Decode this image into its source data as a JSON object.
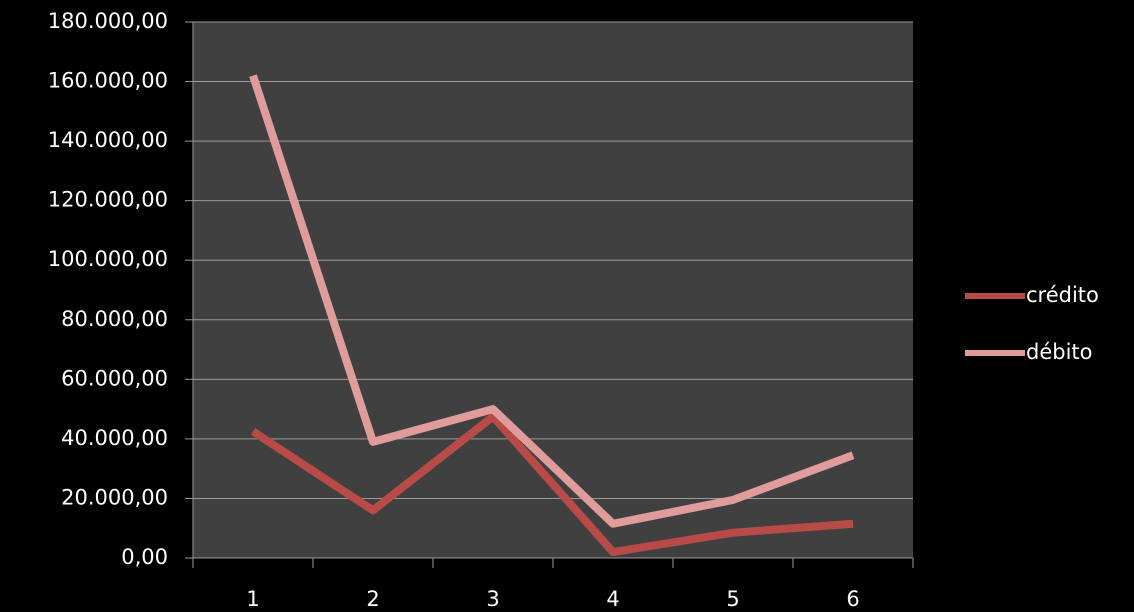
{
  "chart_data": {
    "type": "line",
    "categories": [
      "1",
      "2",
      "3",
      "4",
      "5",
      "6"
    ],
    "series": [
      {
        "name": "crédito",
        "color": "#b84a48",
        "values": [
          42500,
          16000,
          47500,
          2000,
          8500,
          11500
        ]
      },
      {
        "name": "débito",
        "color": "#e09b9b",
        "values": [
          162000,
          39000,
          50000,
          11500,
          19500,
          34500
        ]
      }
    ],
    "ylim": [
      0,
      180000
    ],
    "yticks": [
      {
        "value": 0,
        "label": "0,00"
      },
      {
        "value": 20000,
        "label": "20.000,00"
      },
      {
        "value": 40000,
        "label": "40.000,00"
      },
      {
        "value": 60000,
        "label": "60.000,00"
      },
      {
        "value": 80000,
        "label": "80.000,00"
      },
      {
        "value": 100000,
        "label": "100.000,00"
      },
      {
        "value": 120000,
        "label": "120.000,00"
      },
      {
        "value": 140000,
        "label": "140.000,00"
      },
      {
        "value": 160000,
        "label": "160.000,00"
      },
      {
        "value": 180000,
        "label": "180.000,00"
      }
    ],
    "grid": true,
    "legend": "right"
  }
}
